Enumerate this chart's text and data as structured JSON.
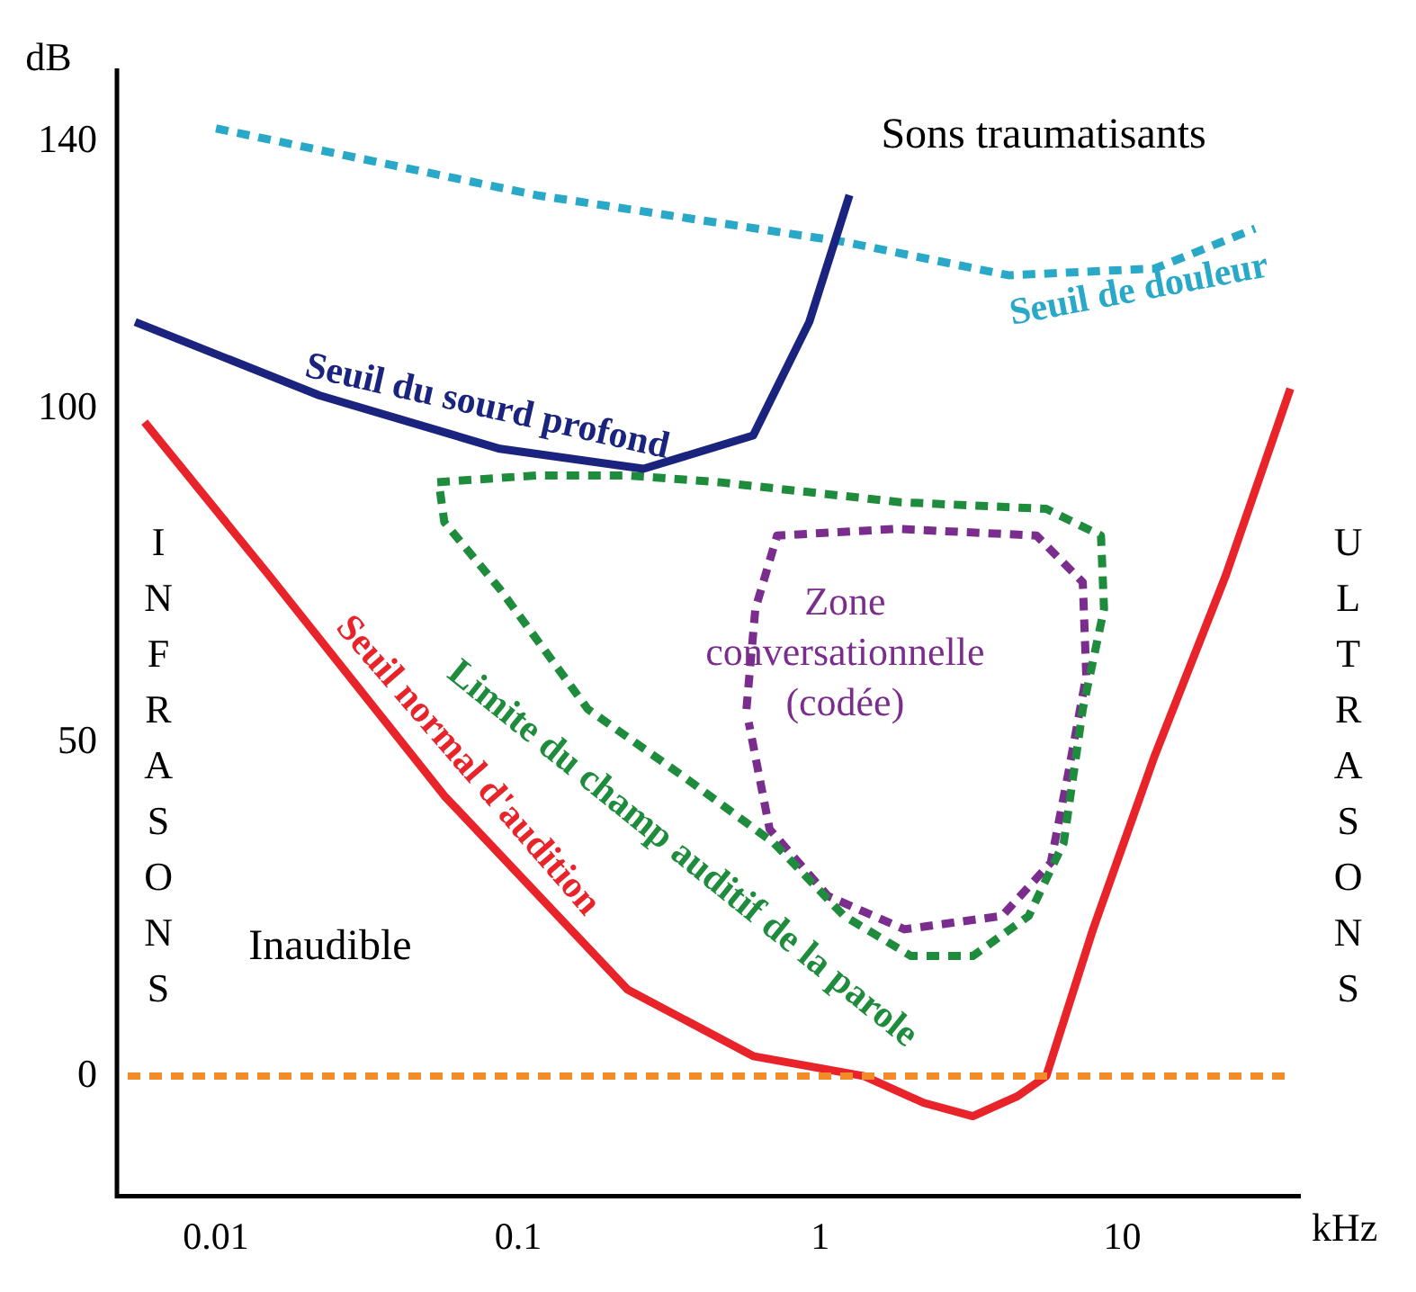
{
  "chart_data": {
    "type": "line",
    "xlabel": "kHz",
    "ylabel": "dB",
    "log": "x",
    "xlim": [
      0.0047,
      39
    ],
    "xticks": [
      0.01,
      0.1,
      1,
      10
    ],
    "ylim": [
      -18,
      151
    ],
    "yticks": [
      0,
      50,
      100,
      140
    ],
    "grid": false,
    "legend": false,
    "marker": "none",
    "series": [
      {
        "name": "Seuil normal d'audition",
        "color": "#e8232a",
        "line_style": "solid",
        "x": [
          0.0058,
          0.015,
          0.057,
          0.23,
          0.6,
          1.4,
          2.2,
          3.2,
          4.5,
          5.6,
          8,
          12.8,
          22,
          36
        ],
        "values": [
          98,
          75,
          42,
          13,
          3,
          0,
          -4,
          -6,
          -3,
          0,
          22,
          48,
          75,
          103
        ]
      },
      {
        "name": "Seuil du sourd profond",
        "color": "#1a237e",
        "line_style": "solid",
        "x": [
          0.0054,
          0.022,
          0.087,
          0.26,
          0.6,
          0.92,
          1.25
        ],
        "values": [
          113,
          102,
          94,
          91,
          96,
          113,
          132
        ]
      },
      {
        "name": "Seuil de douleur",
        "color": "#2aa8c8",
        "line_style": "dashed",
        "x": [
          0.01,
          0.115,
          1.2,
          4.2,
          12.8,
          27.5
        ],
        "values": [
          142,
          132,
          125,
          120,
          121,
          127
        ]
      },
      {
        "name": "Limite du champ auditif de la parole",
        "color": "#1e8c3c",
        "line_style": "dashed",
        "x": [
          0.054,
          0.115,
          0.23,
          0.46,
          1.84,
          5.6,
          8.5,
          8.7,
          7.4,
          6.4,
          4.9,
          3.2,
          2,
          1.2,
          0.7,
          0.35,
          0.17,
          0.087,
          0.057,
          0.055
        ],
        "values": [
          89,
          90,
          90,
          89,
          86,
          85,
          81,
          70,
          55,
          35,
          24,
          18,
          18,
          24,
          35,
          45,
          55,
          73,
          83,
          88
        ]
      },
      {
        "name": "Zone conversationnelle (codée)",
        "color": "#7b2d8e",
        "line_style": "dashed",
        "x": [
          0.57,
          0.61,
          0.72,
          1.8,
          5.2,
          7.4,
          7.6,
          6.6,
          5.8,
          4.0,
          1.9,
          1.06,
          0.68,
          0.58
        ],
        "values": [
          55,
          70,
          81,
          82,
          81,
          74,
          60,
          45,
          32,
          24,
          22,
          27,
          37,
          53
        ]
      }
    ],
    "ref_lines": [
      {
        "axis": "y",
        "value": 0,
        "color": "#f28c28",
        "line_style": "dashed"
      }
    ],
    "annotations": [
      "Sons traumatisants",
      "Inaudible",
      "INFRASONS",
      "ULTRASONS"
    ]
  }
}
